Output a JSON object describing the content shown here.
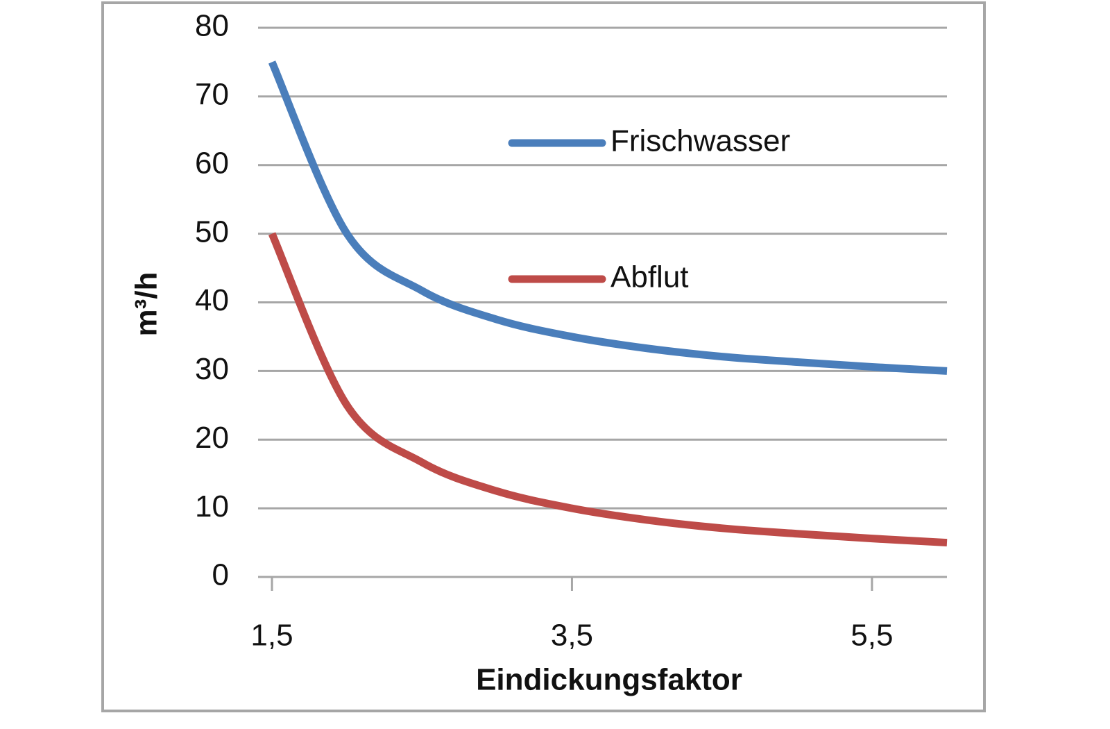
{
  "chart_data": {
    "type": "line",
    "x": [
      1.5,
      2,
      2.5,
      3,
      3.5,
      4,
      4.5,
      5,
      5.5,
      6
    ],
    "series": [
      {
        "name": "Frischwasser",
        "color": "#4a7ebb",
        "values": [
          75,
          50,
          41.7,
          37.5,
          35,
          33.3,
          32.1,
          31.3,
          30.6,
          30
        ]
      },
      {
        "name": "Abflut",
        "color": "#be4b48",
        "values": [
          50,
          25,
          16.7,
          12.5,
          10,
          8.3,
          7.1,
          6.3,
          5.6,
          5
        ]
      }
    ],
    "xlabel": "Eindickungsfaktor",
    "ylabel": "m³/h",
    "xlim": [
      1.5,
      6
    ],
    "xticks": [
      {
        "value": 1.5,
        "label": "1,5"
      },
      {
        "value": 3.5,
        "label": "3,5"
      },
      {
        "value": 5.5,
        "label": "5,5"
      }
    ],
    "ylim": [
      0,
      80
    ],
    "yticks": [
      0,
      10,
      20,
      30,
      40,
      50,
      60,
      70,
      80
    ],
    "grid": true,
    "legend": "right"
  }
}
